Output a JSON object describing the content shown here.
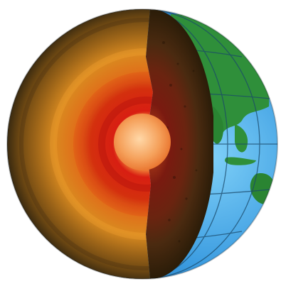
{
  "image": {
    "subject": "earth-cutaway-illustration",
    "colors": {
      "background": "#ffffff",
      "ocean": "#3a9be0",
      "ocean_light": "#6cc0f2",
      "land": "#2f8f3a",
      "land_dark": "#1c6a22",
      "grid": "#1b4a6a",
      "crust_outer": "#3a2a10",
      "mantle_outer": "#8a5a18",
      "mantle_mid": "#d98a20",
      "outer_core": "#d02818",
      "inner_core": "#f5a05a",
      "inner_core_light": "#ffc890"
    },
    "layers": [
      {
        "name": "crust"
      },
      {
        "name": "upper-mantle"
      },
      {
        "name": "lower-mantle"
      },
      {
        "name": "outer-core"
      },
      {
        "name": "inner-core"
      }
    ]
  }
}
